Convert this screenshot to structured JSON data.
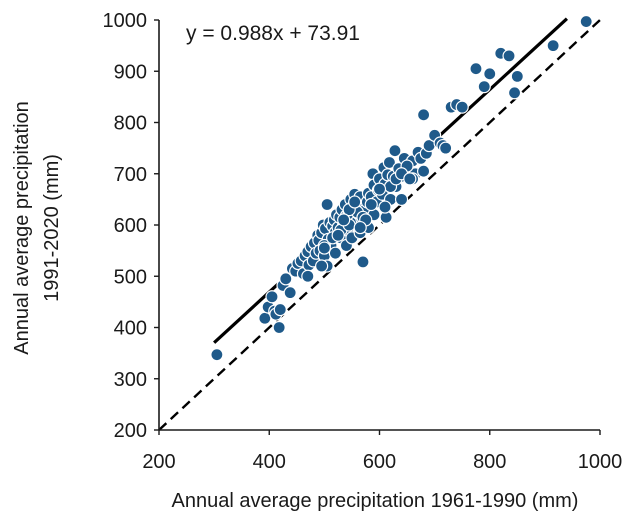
{
  "chart_data": {
    "type": "scatter",
    "title": "",
    "xlabel": "Annual average precipitation 1961-1990 (mm)",
    "ylabel_lines": [
      "Annual average precipitation",
      "1991-2020 (mm)"
    ],
    "xlim": [
      200,
      1000
    ],
    "ylim": [
      200,
      1000
    ],
    "x_ticks": [
      200,
      400,
      600,
      800,
      1000
    ],
    "y_ticks": [
      200,
      300,
      400,
      500,
      600,
      700,
      800,
      900,
      1000
    ],
    "grid": false,
    "legend": "none",
    "annotation": "y = 0.988x + 73.91",
    "marker_color": "#1f5a8a",
    "marker_edge_color": "#ffffff",
    "series": [
      {
        "x": [
          305,
          392,
          398,
          405,
          410,
          412,
          418,
          425,
          430,
          438,
          442,
          448,
          452,
          458,
          462,
          465,
          470,
          472,
          476,
          480,
          482,
          485,
          488,
          490,
          492,
          495,
          498,
          500,
          502,
          505,
          507,
          510,
          512,
          515,
          518,
          520,
          522,
          525,
          528,
          530,
          532,
          535,
          538,
          540,
          542,
          545,
          548,
          550,
          552,
          555,
          558,
          560,
          562,
          565,
          568,
          570,
          575,
          578,
          580,
          585,
          588,
          590,
          595,
          598,
          600,
          605,
          608,
          610,
          612,
          615,
          618,
          620,
          625,
          628,
          630,
          635,
          640,
          645,
          650,
          655,
          660,
          665,
          670,
          675,
          680,
          685,
          690,
          700,
          710,
          715,
          720,
          730,
          740,
          750,
          775,
          790,
          800,
          820,
          835,
          845,
          850,
          915,
          975,
          420,
          470,
          500,
          505,
          515,
          520,
          530,
          540,
          545,
          550,
          560,
          565,
          570,
          580,
          590,
          610,
          620,
          630,
          640,
          650,
          660,
          680,
          500,
          525,
          545,
          555,
          575,
          600,
          640,
          655,
          495,
          535,
          565,
          585
        ],
        "y": [
          347,
          418,
          440,
          460,
          432,
          426,
          400,
          482,
          495,
          468,
          515,
          510,
          525,
          530,
          505,
          540,
          548,
          522,
          558,
          530,
          565,
          545,
          580,
          570,
          550,
          585,
          600,
          540,
          593,
          640,
          572,
          605,
          560,
          598,
          610,
          586,
          620,
          595,
          615,
          575,
          630,
          600,
          640,
          618,
          590,
          625,
          650,
          610,
          636,
          660,
          605,
          640,
          622,
          655,
          612,
          528,
          630,
          645,
          662,
          655,
          700,
          678,
          645,
          668,
          690,
          660,
          712,
          680,
          615,
          698,
          722,
          650,
          695,
          745,
          675,
          710,
          695,
          730,
          705,
          718,
          725,
          700,
          742,
          730,
          815,
          740,
          755,
          775,
          760,
          755,
          750,
          830,
          835,
          830,
          905,
          870,
          895,
          935,
          930,
          858,
          890,
          950,
          997,
          435,
          500,
          560,
          520,
          575,
          545,
          590,
          560,
          600,
          575,
          625,
          585,
          615,
          595,
          620,
          635,
          675,
          690,
          650,
          715,
          690,
          705,
          555,
          580,
          630,
          645,
          610,
          670,
          700,
          690,
          520,
          610,
          595,
          640
        ]
      }
    ],
    "lines": [
      {
        "name": "regression",
        "style": "solid",
        "color": "#000000",
        "from": [
          300,
          370.3
        ],
        "to": [
          940,
          1002.6
        ]
      },
      {
        "name": "one-to-one",
        "style": "dashed",
        "color": "#000000",
        "from": [
          200,
          200
        ],
        "to": [
          1000,
          1000
        ]
      }
    ]
  }
}
